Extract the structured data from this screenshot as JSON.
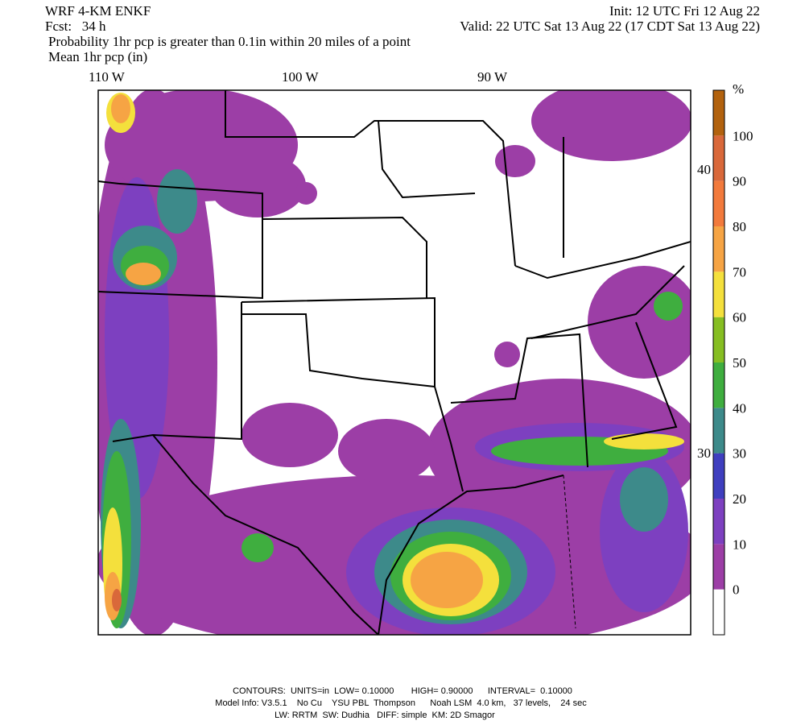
{
  "header": {
    "model": "WRF 4-KM ENKF",
    "forecast": "Fcst:   34 h",
    "init": "Init: 12 UTC Fri 12 Aug 22",
    "valid": "Valid: 22 UTC Sat 13 Aug 22 (17 CDT Sat 13 Aug 22)",
    "field": "Probability 1hr pcp is greater than 0.1in within 20 miles of a point",
    "contour_field": "Mean 1hr pcp (in)"
  },
  "map": {
    "longitudes": [
      "110 W",
      "100 W",
      "90 W"
    ],
    "latitudes": [
      "40 N",
      "30 N"
    ]
  },
  "colorbar": {
    "unit": "%",
    "levels": [
      0,
      10,
      20,
      30,
      40,
      50,
      60,
      70,
      80,
      90,
      100
    ],
    "colors": [
      "#ffffff",
      "#9c3ea6",
      "#7d40c0",
      "#3f3fbf",
      "#3d8a8a",
      "#3fae3f",
      "#86be22",
      "#f4e03c",
      "#f6a444",
      "#f27a3c",
      "#d9683a",
      "#b2620e"
    ]
  },
  "footer": {
    "contours": "CONTOURS:  UNITS=in  LOW= 0.10000       HIGH= 0.90000      INTERVAL=  0.10000",
    "model_info": "Model Info: V3.5.1    No Cu    YSU PBL  Thompson      Noah LSM  4.0 km,   37 levels,    24 sec",
    "physics": "LW: RRTM  SW: Dudhia   DIFF: simple  KM: 2D Smagor"
  }
}
